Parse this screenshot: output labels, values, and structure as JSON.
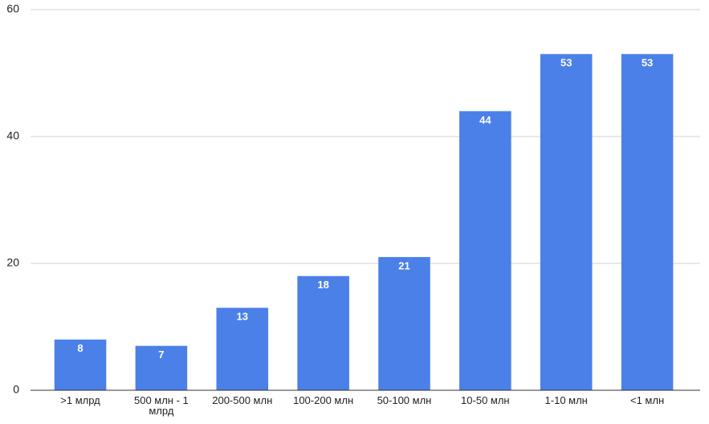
{
  "chart_data": {
    "type": "bar",
    "categories": [
      ">1 млрд",
      "500 млн - 1 млрд",
      "200-500 млн",
      "100-200 млн",
      "50-100 млн",
      "10-50 млн",
      "1-10 млн",
      "<1 млн"
    ],
    "values": [
      8,
      7,
      13,
      18,
      21,
      44,
      53,
      53
    ],
    "color": "#4a80e8",
    "ylim": [
      0,
      60
    ],
    "yticks": [
      0,
      20,
      40,
      60
    ],
    "grid": true,
    "data_labels": true
  }
}
